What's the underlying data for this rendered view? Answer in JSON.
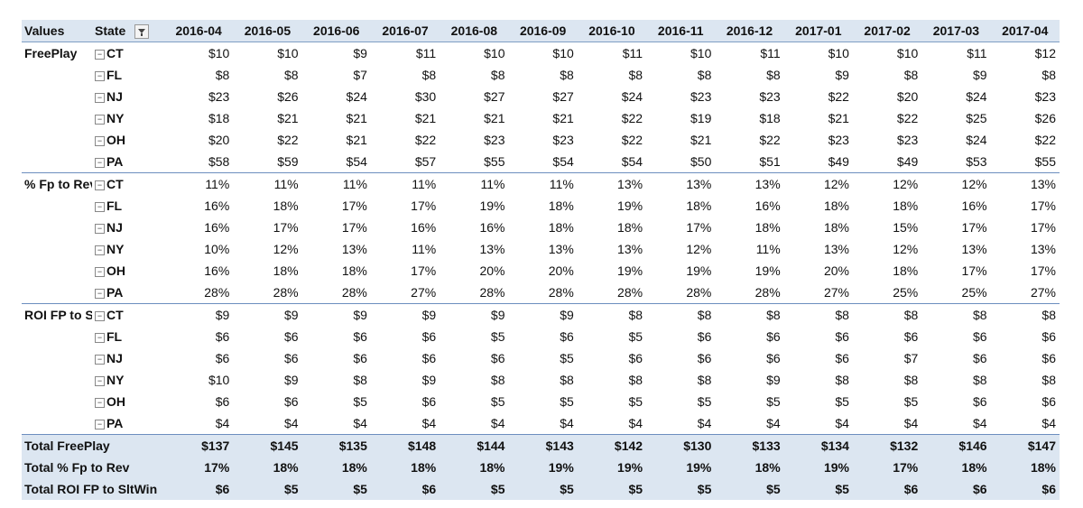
{
  "header": {
    "values_label": "Values",
    "state_label": "State",
    "filter_icon": "filter-dropdown-icon"
  },
  "months": [
    "2016-04",
    "2016-05",
    "2016-06",
    "2016-07",
    "2016-08",
    "2016-09",
    "2016-10",
    "2016-11",
    "2016-12",
    "2017-01",
    "2017-02",
    "2017-03",
    "2017-04"
  ],
  "groups": [
    {
      "label": "FreePlay",
      "rows": [
        {
          "state": "CT",
          "values": [
            "$10",
            "$10",
            "$9",
            "$11",
            "$10",
            "$10",
            "$11",
            "$10",
            "$11",
            "$10",
            "$10",
            "$11",
            "$12"
          ]
        },
        {
          "state": "FL",
          "values": [
            "$8",
            "$8",
            "$7",
            "$8",
            "$8",
            "$8",
            "$8",
            "$8",
            "$8",
            "$9",
            "$8",
            "$9",
            "$8"
          ]
        },
        {
          "state": "NJ",
          "values": [
            "$23",
            "$26",
            "$24",
            "$30",
            "$27",
            "$27",
            "$24",
            "$23",
            "$23",
            "$22",
            "$20",
            "$24",
            "$23"
          ]
        },
        {
          "state": "NY",
          "values": [
            "$18",
            "$21",
            "$21",
            "$21",
            "$21",
            "$21",
            "$22",
            "$19",
            "$18",
            "$21",
            "$22",
            "$25",
            "$26"
          ]
        },
        {
          "state": "OH",
          "values": [
            "$20",
            "$22",
            "$21",
            "$22",
            "$23",
            "$23",
            "$22",
            "$21",
            "$22",
            "$23",
            "$23",
            "$24",
            "$22"
          ]
        },
        {
          "state": "PA",
          "values": [
            "$58",
            "$59",
            "$54",
            "$57",
            "$55",
            "$54",
            "$54",
            "$50",
            "$51",
            "$49",
            "$49",
            "$53",
            "$55"
          ]
        }
      ]
    },
    {
      "label": "% Fp to Rev",
      "rows": [
        {
          "state": "CT",
          "values": [
            "11%",
            "11%",
            "11%",
            "11%",
            "11%",
            "11%",
            "13%",
            "13%",
            "13%",
            "12%",
            "12%",
            "12%",
            "13%"
          ]
        },
        {
          "state": "FL",
          "values": [
            "16%",
            "18%",
            "17%",
            "17%",
            "19%",
            "18%",
            "19%",
            "18%",
            "16%",
            "18%",
            "18%",
            "16%",
            "17%"
          ]
        },
        {
          "state": "NJ",
          "values": [
            "16%",
            "17%",
            "17%",
            "16%",
            "16%",
            "18%",
            "18%",
            "17%",
            "18%",
            "18%",
            "15%",
            "17%",
            "17%"
          ]
        },
        {
          "state": "NY",
          "values": [
            "10%",
            "12%",
            "13%",
            "11%",
            "13%",
            "13%",
            "13%",
            "12%",
            "11%",
            "13%",
            "12%",
            "13%",
            "13%"
          ]
        },
        {
          "state": "OH",
          "values": [
            "16%",
            "18%",
            "18%",
            "17%",
            "20%",
            "20%",
            "19%",
            "19%",
            "19%",
            "20%",
            "18%",
            "17%",
            "17%"
          ]
        },
        {
          "state": "PA",
          "values": [
            "28%",
            "28%",
            "28%",
            "27%",
            "28%",
            "28%",
            "28%",
            "28%",
            "28%",
            "27%",
            "25%",
            "25%",
            "27%"
          ]
        }
      ]
    },
    {
      "label": "ROI FP to SltWin",
      "rows": [
        {
          "state": "CT",
          "values": [
            "$9",
            "$9",
            "$9",
            "$9",
            "$9",
            "$9",
            "$8",
            "$8",
            "$8",
            "$8",
            "$8",
            "$8",
            "$8"
          ]
        },
        {
          "state": "FL",
          "values": [
            "$6",
            "$6",
            "$6",
            "$6",
            "$5",
            "$6",
            "$5",
            "$6",
            "$6",
            "$6",
            "$6",
            "$6",
            "$6"
          ]
        },
        {
          "state": "NJ",
          "values": [
            "$6",
            "$6",
            "$6",
            "$6",
            "$6",
            "$5",
            "$6",
            "$6",
            "$6",
            "$6",
            "$7",
            "$6",
            "$6"
          ]
        },
        {
          "state": "NY",
          "values": [
            "$10",
            "$9",
            "$8",
            "$9",
            "$8",
            "$8",
            "$8",
            "$8",
            "$9",
            "$8",
            "$8",
            "$8",
            "$8"
          ]
        },
        {
          "state": "OH",
          "values": [
            "$6",
            "$6",
            "$5",
            "$6",
            "$5",
            "$5",
            "$5",
            "$5",
            "$5",
            "$5",
            "$5",
            "$6",
            "$6"
          ]
        },
        {
          "state": "PA",
          "values": [
            "$4",
            "$4",
            "$4",
            "$4",
            "$4",
            "$4",
            "$4",
            "$4",
            "$4",
            "$4",
            "$4",
            "$4",
            "$4"
          ]
        }
      ]
    }
  ],
  "totals": [
    {
      "label": "Total FreePlay",
      "values": [
        "$137",
        "$145",
        "$135",
        "$148",
        "$144",
        "$143",
        "$142",
        "$130",
        "$133",
        "$134",
        "$132",
        "$146",
        "$147"
      ]
    },
    {
      "label": "Total % Fp to Rev",
      "values": [
        "17%",
        "18%",
        "18%",
        "18%",
        "18%",
        "19%",
        "19%",
        "19%",
        "18%",
        "19%",
        "17%",
        "18%",
        "18%"
      ]
    },
    {
      "label": "Total ROI FP to SltWin",
      "values": [
        "$6",
        "$5",
        "$5",
        "$6",
        "$5",
        "$5",
        "$5",
        "$5",
        "$5",
        "$5",
        "$6",
        "$6",
        "$6"
      ]
    }
  ]
}
